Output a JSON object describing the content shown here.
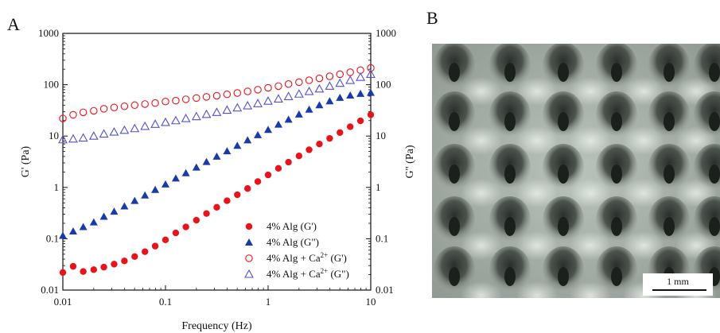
{
  "panels": {
    "a_label": "A",
    "b_label": "B"
  },
  "chart_data": {
    "type": "scatter",
    "xlabel": "Frequency (Hz)",
    "ylabel_left": "G' (Pa)",
    "ylabel_right": "G'' (Pa)",
    "xscale": "log",
    "yscale": "log",
    "xlim": [
      0.01,
      10
    ],
    "ylim": [
      0.01,
      1000
    ],
    "x_ticks": [
      "0.01",
      "0.1",
      "1",
      "10"
    ],
    "y_ticks": [
      "0.01",
      "0.1",
      "1",
      "10",
      "100",
      "1000"
    ],
    "legend_position": "bottom-right",
    "series": [
      {
        "name": "4% Alg (G')",
        "marker": "filled-circle",
        "color": "#e8141b",
        "x": [
          0.01,
          0.0126,
          0.0158,
          0.02,
          0.0251,
          0.0316,
          0.0398,
          0.0501,
          0.0631,
          0.0794,
          0.1,
          0.126,
          0.158,
          0.2,
          0.251,
          0.316,
          0.398,
          0.501,
          0.631,
          0.794,
          1.0,
          1.26,
          1.58,
          2.0,
          2.51,
          3.16,
          3.98,
          5.01,
          6.31,
          7.94,
          10.0
        ],
        "y": [
          0.022,
          0.029,
          0.023,
          0.025,
          0.028,
          0.032,
          0.037,
          0.045,
          0.056,
          0.072,
          0.095,
          0.13,
          0.17,
          0.23,
          0.31,
          0.41,
          0.55,
          0.72,
          0.95,
          1.3,
          1.75,
          2.35,
          3.1,
          4.1,
          5.4,
          7.0,
          9.0,
          11.7,
          15.2,
          19.8,
          26
        ]
      },
      {
        "name": "4% Alg (G\")",
        "marker": "filled-triangle",
        "color": "#1a3aa8",
        "x": [
          0.01,
          0.0126,
          0.0158,
          0.02,
          0.0251,
          0.0316,
          0.0398,
          0.0501,
          0.0631,
          0.0794,
          0.1,
          0.126,
          0.158,
          0.2,
          0.251,
          0.316,
          0.398,
          0.501,
          0.631,
          0.794,
          1.0,
          1.26,
          1.58,
          2.0,
          2.51,
          3.16,
          3.98,
          5.01,
          6.31,
          7.94,
          10.0
        ],
        "y": [
          0.115,
          0.14,
          0.17,
          0.21,
          0.27,
          0.34,
          0.43,
          0.55,
          0.7,
          0.9,
          1.15,
          1.5,
          1.9,
          2.45,
          3.15,
          4.0,
          5.1,
          6.5,
          8.3,
          10.5,
          13.3,
          16.8,
          21,
          26.5,
          33,
          40,
          48,
          56,
          62,
          67,
          70
        ]
      },
      {
        "name": "4% Alg + Ca2+ (G')",
        "marker": "open-circle",
        "color": "#e8141b",
        "x": [
          0.01,
          0.0126,
          0.0158,
          0.02,
          0.0251,
          0.0316,
          0.0398,
          0.0501,
          0.0631,
          0.0794,
          0.1,
          0.126,
          0.158,
          0.2,
          0.251,
          0.316,
          0.398,
          0.501,
          0.631,
          0.794,
          1.0,
          1.26,
          1.58,
          2.0,
          2.51,
          3.16,
          3.98,
          5.01,
          6.31,
          7.94,
          10.0
        ],
        "y": [
          22,
          26,
          29,
          31,
          34,
          36,
          38,
          40,
          42,
          44,
          47,
          49,
          52,
          55,
          58,
          61,
          65,
          69,
          74,
          80,
          87,
          94,
          103,
          112,
          122,
          133,
          146,
          160,
          175,
          192,
          212
        ]
      },
      {
        "name": "4% Alg + Ca2+ (G\")",
        "marker": "open-triangle",
        "color": "#5050d0",
        "x": [
          0.01,
          0.0126,
          0.0158,
          0.02,
          0.0251,
          0.0316,
          0.0398,
          0.0501,
          0.0631,
          0.0794,
          0.1,
          0.126,
          0.158,
          0.2,
          0.251,
          0.316,
          0.398,
          0.501,
          0.631,
          0.794,
          1.0,
          1.26,
          1.58,
          2.0,
          2.51,
          3.16,
          3.98,
          5.01,
          6.31,
          7.94,
          10.0
        ],
        "y": [
          8.5,
          8.8,
          9.2,
          10,
          11,
          12,
          13,
          14,
          15.5,
          17,
          18.5,
          20,
          22,
          24,
          26.5,
          29,
          32,
          35.5,
          39,
          43,
          48,
          53,
          59,
          66,
          74,
          83,
          94,
          107,
          122,
          140,
          160
        ]
      }
    ],
    "legend": [
      {
        "label": "4% Alg (G')",
        "label_base": "",
        "label_sup": "",
        "label_tail": ""
      },
      {
        "label": "4% Alg (G\")",
        "label_base": "",
        "label_sup": "",
        "label_tail": ""
      },
      {
        "label": "",
        "label_base": "4% Alg + Ca",
        "label_sup": "2+",
        "label_tail": " (G')"
      },
      {
        "label": "",
        "label_base": "4% Alg + Ca",
        "label_sup": "2+",
        "label_tail": " (G\")"
      }
    ]
  },
  "photo": {
    "description_icon": "hydrogel-microneedle-array-photo",
    "scale_bar_label": "1 mm"
  }
}
